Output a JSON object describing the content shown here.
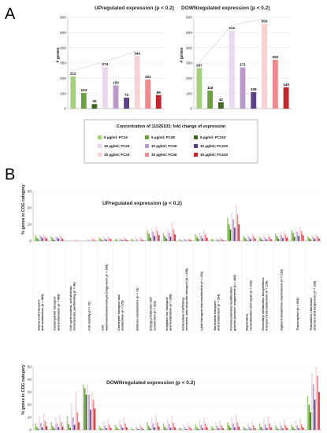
{
  "panels": {
    "a": "A",
    "b": "B"
  },
  "series": [
    {
      "name": "5 µg/ml; FC≥3",
      "color": "#a6d07e"
    },
    {
      "name": "5 µg/ml; FC≥5",
      "color": "#6ba03e"
    },
    {
      "name": "5 µg/ml; FC≥10",
      "color": "#3f6b22"
    },
    {
      "name": "10 µg/ml; FC≥3",
      "color": "#e8d9ec"
    },
    {
      "name": "10 µg/ml; FC≥5",
      "color": "#b99ac8"
    },
    {
      "name": "10 µg/ml; FC≥10",
      "color": "#5c3f86"
    },
    {
      "name": "15 µg/ml; FC≥3",
      "color": "#f6d2d6"
    },
    {
      "name": "15 µg/ml; FC≥5",
      "color": "#ee8a8e"
    },
    {
      "name": "15 µg/ml; FC≥10",
      "color": "#c0272d"
    }
  ],
  "legend_title": "Concentration of 11026103; fold change of expression",
  "chart_data": [
    {
      "type": "bar",
      "title": "UPregulated expression (p < 0.2)",
      "ylabel": "# genes",
      "ylim": [
        0,
        600
      ],
      "yticks": [
        0,
        100,
        200,
        300,
        400,
        500,
        600
      ],
      "values": [
        212,
        103,
        30,
        274,
        153,
        72,
        344,
        191,
        89
      ]
    },
    {
      "type": "bar",
      "title": "DOWNregulated expression (p < 0.2)",
      "ylabel": "# genes",
      "ylim": [
        0,
        600
      ],
      "yticks": [
        0,
        100,
        200,
        300,
        400,
        500,
        600
      ],
      "values": [
        267,
        118,
        42,
        512,
        271,
        108,
        555,
        320,
        140
      ]
    },
    {
      "type": "bar",
      "title": "UPregulated expression (p < 0.2)",
      "ylabel": "% genes in COG category",
      "ylim": [
        0,
        30
      ],
      "yticks": [
        0,
        10,
        20,
        30
      ],
      "categories": [
        "Amino acid transport and metabolism (n = 569)",
        "Carbohydrate transport and metabolism (n = 495)",
        "Cell cycle control, cell division, chromosome partitioning (n = 36)",
        "Cell motility (n = 72)",
        "Cell wall/membrane/envelope biogenesis (n = 269)",
        "Coenzyme transport and metabolism (n = 173)",
        "Defense mechanisms (n = 71)",
        "Energy production and conversion (n = 323)",
        "Inorganic ion transport and metabolism (n = 268)",
        "Intracellular trafficking, secretion, and vesicular transport (n = 106)",
        "Lipid transport and metabolism (n = 201)",
        "Nucleotide transport and metabolism (n = 104)",
        "Posttranslational modification, protein turnover, chaperones (n = 148)",
        "Replication, recombination and repair (n = 213)",
        "Secondary metabolites biosynthesis, transport and catabolism (n = 176)",
        "Signal transduction mechanisms (n = 218)",
        "Transcription (n = 635)",
        "Translation, ribosomal structure and biogenesis (n = 193)"
      ],
      "groups": [
        [
          3.5,
          2.0,
          0.8,
          3.8,
          2.8,
          1.8,
          4.0,
          2.6,
          1.5
        ],
        [
          2.8,
          1.8,
          0.5,
          3.2,
          2.3,
          1.5,
          3.4,
          2.2,
          1.2
        ],
        [
          0.4,
          0.0,
          0.0,
          0.6,
          0.3,
          0.0,
          0.9,
          0.4,
          0.0
        ],
        [
          0.0,
          0.0,
          0.0,
          1.4,
          0.5,
          0.0,
          2.5,
          1.2,
          0.3
        ],
        [
          2.2,
          1.2,
          0.4,
          2.8,
          1.5,
          0.7,
          3.0,
          1.8,
          0.9
        ],
        [
          1.5,
          0.8,
          0.0,
          2.2,
          1.1,
          0.4,
          2.4,
          1.4,
          0.6
        ],
        [
          1.4,
          0.6,
          0.0,
          2.4,
          1.0,
          0.0,
          2.6,
          1.3,
          0.5
        ],
        [
          6.5,
          4.5,
          2.0,
          7.5,
          5.5,
          3.0,
          9.0,
          6.0,
          3.5
        ],
        [
          5.0,
          3.0,
          1.5,
          7.0,
          5.0,
          2.5,
          11.0,
          7.0,
          4.0
        ],
        [
          1.2,
          0.5,
          0.0,
          1.8,
          1.0,
          0.3,
          2.0,
          1.2,
          0.4
        ],
        [
          4.0,
          2.5,
          1.0,
          5.0,
          3.0,
          1.5,
          6.5,
          4.0,
          2.0
        ],
        [
          1.5,
          0.8,
          0.0,
          2.0,
          1.0,
          0.4,
          2.2,
          1.3,
          0.5
        ],
        [
          14.0,
          10.0,
          7.0,
          17.0,
          13.0,
          8.0,
          22.0,
          16.0,
          10.0
        ],
        [
          3.0,
          1.8,
          0.6,
          4.0,
          2.4,
          1.0,
          4.5,
          3.0,
          1.4
        ],
        [
          2.5,
          1.5,
          0.5,
          3.5,
          2.0,
          0.8,
          4.0,
          2.4,
          1.0
        ],
        [
          4.5,
          3.0,
          1.2,
          5.5,
          3.5,
          1.8,
          6.0,
          4.0,
          2.0
        ],
        [
          6.5,
          5.0,
          2.5,
          7.5,
          5.5,
          3.0,
          8.5,
          6.0,
          3.5
        ],
        [
          3.0,
          1.8,
          0.8,
          3.8,
          2.5,
          1.2,
          4.2,
          2.8,
          1.4
        ]
      ]
    },
    {
      "type": "bar",
      "title": "DOWNregulated expression (p < 0.2)",
      "ylabel": "% genes in COG category",
      "ylim": [
        0,
        50
      ],
      "yticks": [
        0,
        10,
        20,
        30,
        40,
        50
      ],
      "groups": [
        [
          5.0,
          2.5,
          0.8,
          11.0,
          5.5,
          2.0,
          13.0,
          7.0,
          3.0
        ],
        [
          6.0,
          3.0,
          1.0,
          10.0,
          5.0,
          2.0,
          12.0,
          6.5,
          2.5
        ],
        [
          11.0,
          4.5,
          1.5,
          21.0,
          10.0,
          4.0,
          30.0,
          14.0,
          6.0
        ],
        [
          36.0,
          33.0,
          28.0,
          36.0,
          28.0,
          16.0,
          30.0,
          24.0,
          17.0
        ],
        [
          3.0,
          1.5,
          0.4,
          7.0,
          3.2,
          1.2,
          8.5,
          4.0,
          1.5
        ],
        [
          4.0,
          2.0,
          0.5,
          8.0,
          4.0,
          1.5,
          10.0,
          5.0,
          2.0
        ],
        [
          1.5,
          0.5,
          0.0,
          4.0,
          1.8,
          0.5,
          5.0,
          2.5,
          0.8
        ],
        [
          6.0,
          3.0,
          1.0,
          10.0,
          5.0,
          2.0,
          12.0,
          6.0,
          2.5
        ],
        [
          5.0,
          2.5,
          0.8,
          9.0,
          4.5,
          1.6,
          11.0,
          5.5,
          2.0
        ],
        [
          2.0,
          1.0,
          0.0,
          4.5,
          2.0,
          0.6,
          5.5,
          2.8,
          1.0
        ],
        [
          4.5,
          2.0,
          0.6,
          8.5,
          4.0,
          1.4,
          10.0,
          5.0,
          2.0
        ],
        [
          3.0,
          1.5,
          0.3,
          6.0,
          3.0,
          1.0,
          7.5,
          3.8,
          1.4
        ],
        [
          6.0,
          3.5,
          1.5,
          10.0,
          5.0,
          2.0,
          12.0,
          6.0,
          2.5
        ],
        [
          2.5,
          1.2,
          0.4,
          5.5,
          2.6,
          0.8,
          7.0,
          3.4,
          1.2
        ],
        [
          5.0,
          2.5,
          0.8,
          9.0,
          4.2,
          1.4,
          10.5,
          5.0,
          2.0
        ],
        [
          3.5,
          1.6,
          0.5,
          6.5,
          3.0,
          1.0,
          8.0,
          4.0,
          1.5
        ],
        [
          4.0,
          2.0,
          0.6,
          7.5,
          3.6,
          1.2,
          9.0,
          4.5,
          1.8
        ],
        [
          27.0,
          20.0,
          14.0,
          45.0,
          36.0,
          24.0,
          50.0,
          43.0,
          30.0
        ]
      ]
    }
  ]
}
